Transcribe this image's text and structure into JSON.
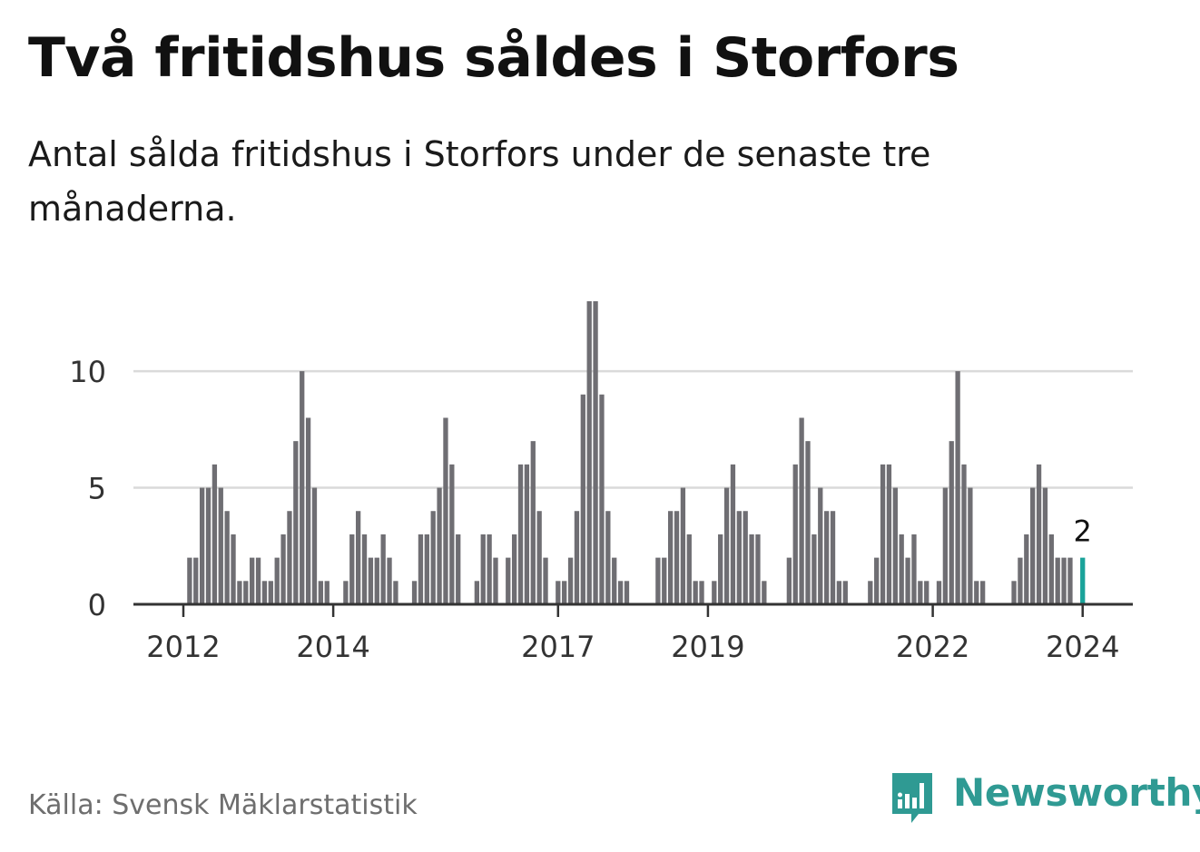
{
  "title": "Två fritidshus såldes i Storfors",
  "subtitle": "Antal sålda fritidshus i Storfors under de senaste tre månaderna.",
  "source": "Källa: Svensk Mäklarstatistik",
  "brand": {
    "name": "Newsworthy",
    "icon": "newsworthy-logo-icon"
  },
  "colors": {
    "bar": "#6f6e73",
    "highlight": "#1aa39a",
    "grid": "#dadada",
    "axis": "#333333",
    "brand": "#2f9a93"
  },
  "chart_data": {
    "type": "bar",
    "title": "Två fritidshus såldes i Storfors",
    "xlabel": "",
    "ylabel": "",
    "ylim": [
      0,
      13
    ],
    "yticks": [
      0,
      5,
      10
    ],
    "grid": true,
    "start": "2011-12",
    "x_tick_labels": [
      "2012",
      "2014",
      "2017",
      "2019",
      "2022",
      "2024"
    ],
    "x_tick_index": [
      0,
      24,
      60,
      84,
      120,
      144
    ],
    "values": [
      0,
      2,
      2,
      5,
      5,
      6,
      5,
      4,
      3,
      1,
      1,
      2,
      2,
      1,
      1,
      2,
      3,
      4,
      7,
      10,
      8,
      5,
      1,
      1,
      0,
      0,
      1,
      3,
      4,
      3,
      2,
      2,
      3,
      2,
      1,
      0,
      0,
      1,
      3,
      3,
      4,
      5,
      8,
      6,
      3,
      0,
      0,
      1,
      3,
      3,
      2,
      0,
      2,
      3,
      6,
      6,
      7,
      4,
      2,
      0,
      1,
      1,
      2,
      4,
      9,
      13,
      13,
      9,
      4,
      2,
      1,
      1,
      0,
      0,
      0,
      0,
      2,
      2,
      4,
      4,
      5,
      3,
      1,
      1,
      0,
      1,
      3,
      5,
      6,
      4,
      4,
      3,
      3,
      1,
      0,
      0,
      0,
      2,
      6,
      8,
      7,
      3,
      5,
      4,
      4,
      1,
      1,
      0,
      0,
      0,
      1,
      2,
      6,
      6,
      5,
      3,
      2,
      3,
      1,
      1,
      0,
      1,
      5,
      7,
      10,
      6,
      5,
      1,
      1,
      0,
      0,
      0,
      0,
      1,
      2,
      3,
      5,
      6,
      5,
      3,
      2,
      2,
      2,
      0,
      2
    ],
    "highlight_label": "2"
  }
}
